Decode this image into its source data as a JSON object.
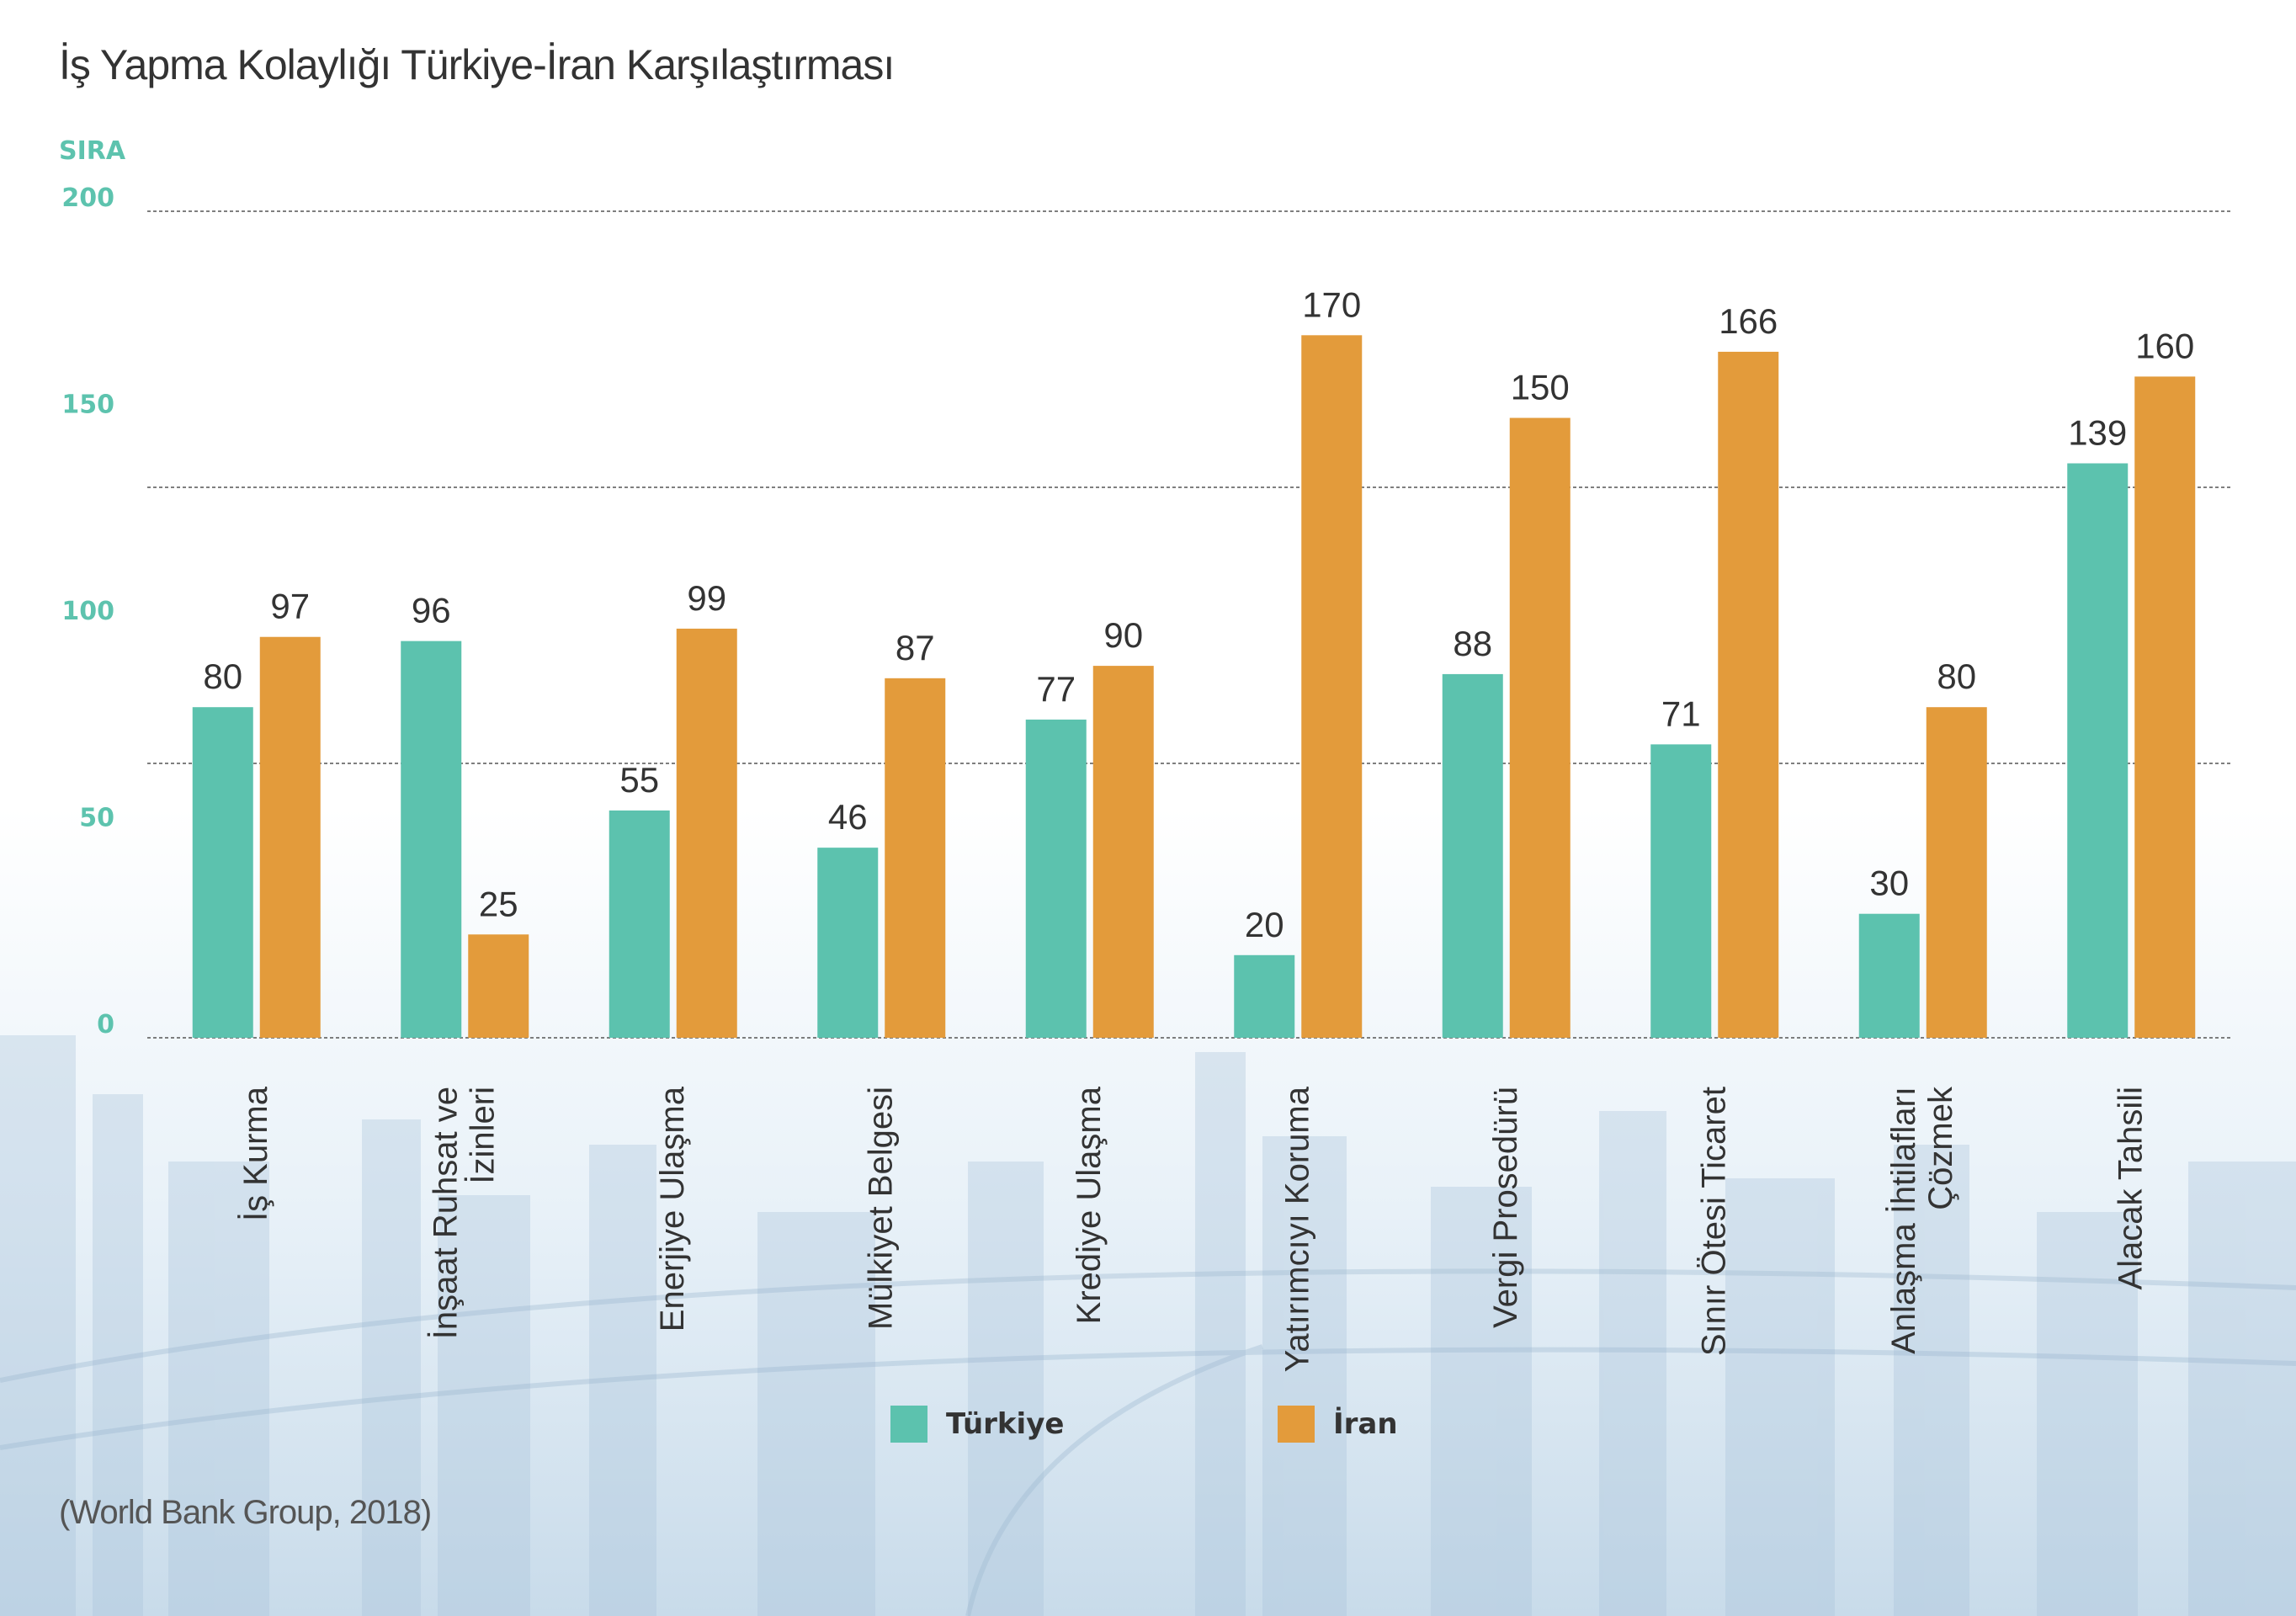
{
  "title": "İş Yapma Kolaylığı Türkiye-İran Karşılaştırması",
  "source": "(World Bank Group, 2018)",
  "colors": {
    "turkey": "#5cc2ae",
    "iran": "#e39b3b",
    "axis": "#5dc3ae",
    "text": "#333333"
  },
  "chart_data": {
    "type": "bar",
    "ylabel": "SIRA",
    "ylim": [
      0,
      200
    ],
    "yticks": [
      0,
      50,
      100,
      150,
      200
    ],
    "grid": true,
    "legend_position": "bottom-center",
    "categories": [
      "İş Kurma",
      "İnşaat Ruhsat ve İzinleri",
      "Enerjiye Ulaşma",
      "Mülkiyet Belgesi",
      "Krediye Ulaşma",
      "Yatırımcıyı Koruma",
      "Vergi Prosedürü",
      "Sınır Ötesi Ticaret",
      "Anlaşma İhtilafları Çözmek",
      "Alacak Tahsili"
    ],
    "category_lines": [
      [
        "İş Kurma"
      ],
      [
        "İnşaat Ruhsat ve",
        "İzinleri"
      ],
      [
        "Enerjiye Ulaşma"
      ],
      [
        "Mülkiyet Belgesi"
      ],
      [
        "Krediye Ulaşma"
      ],
      [
        "Yatırımcıyı Koruma"
      ],
      [
        "Vergi Prosedürü"
      ],
      [
        "Sınır Ötesi Ticaret"
      ],
      [
        "Anlaşma İhtilafları",
        "Çözmek"
      ],
      [
        "Alacak Tahsili"
      ]
    ],
    "series": [
      {
        "name": "Türkiye",
        "values": [
          80,
          96,
          55,
          46,
          77,
          20,
          88,
          71,
          30,
          139
        ]
      },
      {
        "name": "İran",
        "values": [
          97,
          25,
          99,
          87,
          90,
          170,
          150,
          166,
          80,
          160
        ]
      }
    ]
  }
}
